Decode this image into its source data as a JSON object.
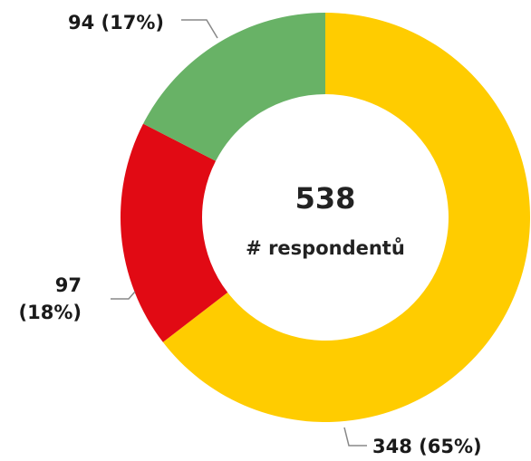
{
  "chart_data": {
    "type": "donut",
    "values": [
      348,
      97,
      94
    ],
    "value_labels": [
      "348 (65%)",
      "97 (18%)",
      "94 (17%)"
    ],
    "colors": [
      "#ffcc00",
      "#e10a14",
      "#68b266"
    ],
    "total": 538,
    "center_label": "# respondentů"
  }
}
